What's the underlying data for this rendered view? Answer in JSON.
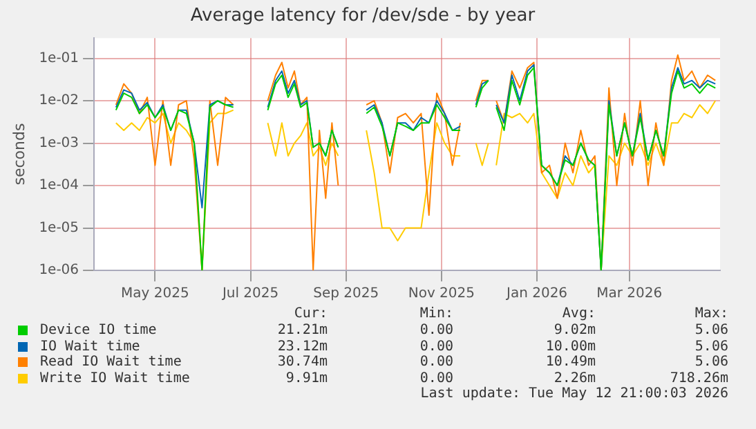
{
  "chart_data": {
    "type": "line",
    "title": "Average latency for /dev/sde - by year",
    "ylabel": "seconds",
    "log": "y",
    "grid": true,
    "marker": "none",
    "legend": "bottom",
    "xlim": [
      "2025-04-07",
      "2026-05-12"
    ],
    "xticks": [
      {
        "value": "2025-05-16",
        "label": "May 2025"
      },
      {
        "value": "2025-07-16",
        "label": "Jul 2025"
      },
      {
        "value": "2025-09-15",
        "label": "Sep 2025"
      },
      {
        "value": "2025-11-15",
        "label": "Nov 2025"
      },
      {
        "value": "2026-01-15",
        "label": "Jan 2026"
      },
      {
        "value": "2026-03-15",
        "label": "Mar 2026"
      }
    ],
    "ylim": [
      1e-06,
      0.3
    ],
    "yticks": [
      {
        "value": 1e-06,
        "label": "1e-06"
      },
      {
        "value": 1e-05,
        "label": "1e-05"
      },
      {
        "value": 0.0001,
        "label": "1e-04"
      },
      {
        "value": 0.001,
        "label": "1e-03"
      },
      {
        "value": 0.01,
        "label": "1e-02"
      },
      {
        "value": 0.1,
        "label": "1e-01"
      }
    ],
    "x": [
      "2025-04-21",
      "2025-04-26",
      "2025-05-01",
      "2025-05-06",
      "2025-05-11",
      "2025-05-16",
      "2025-05-21",
      "2025-05-26",
      "2025-05-31",
      "2025-06-05",
      "2025-06-10",
      "2025-06-15",
      "2025-06-20",
      "2025-06-25",
      "2025-06-30",
      "2025-07-05",
      "2025-07-15",
      "2025-07-27",
      "2025-08-01",
      "2025-08-05",
      "2025-08-09",
      "2025-08-13",
      "2025-08-17",
      "2025-08-21",
      "2025-08-25",
      "2025-08-29",
      "2025-09-02",
      "2025-09-06",
      "2025-09-10",
      "2025-09-20",
      "2025-09-28",
      "2025-10-03",
      "2025-10-08",
      "2025-10-13",
      "2025-10-18",
      "2025-10-23",
      "2025-10-28",
      "2025-11-02",
      "2025-11-07",
      "2025-11-12",
      "2025-11-17",
      "2025-11-22",
      "2025-11-27",
      "2025-12-02",
      "2025-12-07",
      "2025-12-11",
      "2025-12-15",
      "2025-12-17",
      "2025-12-20",
      "2025-12-25",
      "2025-12-30",
      "2026-01-04",
      "2026-01-09",
      "2026-01-13",
      "2026-01-18",
      "2026-01-23",
      "2026-01-28",
      "2026-02-02",
      "2026-02-07",
      "2026-02-12",
      "2026-02-17",
      "2026-02-21",
      "2026-02-25",
      "2026-03-02",
      "2026-03-07",
      "2026-03-12",
      "2026-03-17",
      "2026-03-22",
      "2026-03-27",
      "2026-04-01",
      "2026-04-06",
      "2026-04-11",
      "2026-04-15",
      "2026-04-19",
      "2026-04-24",
      "2026-04-29",
      "2026-05-04",
      "2026-05-09"
    ],
    "series": [
      {
        "name": "Device IO time",
        "color": "#00cc00",
        "values": [
          0.006,
          0.015,
          0.012,
          0.005,
          0.008,
          0.004,
          0.007,
          0.002,
          0.006,
          0.005,
          0.001,
          1e-06,
          0.007,
          0.01,
          0.008,
          0.007,
          null,
          0.006,
          0.025,
          0.04,
          0.012,
          0.025,
          0.007,
          0.009,
          0.0008,
          0.001,
          0.0005,
          0.002,
          0.0008,
          null,
          0.005,
          0.007,
          0.0025,
          0.0005,
          0.003,
          0.0025,
          0.002,
          0.003,
          0.003,
          0.008,
          0.004,
          0.002,
          0.002,
          null,
          0.007,
          0.02,
          0.03,
          null,
          0.007,
          0.002,
          0.03,
          0.008,
          0.04,
          0.06,
          0.0003,
          0.0002,
          0.0001,
          0.0004,
          0.0003,
          0.001,
          0.0004,
          0.0003,
          1e-06,
          0.008,
          0.0005,
          0.003,
          0.0005,
          0.004,
          0.0004,
          0.002,
          0.0005,
          0.015,
          0.05,
          0.02,
          0.025,
          0.015,
          0.025,
          0.02
        ]
      },
      {
        "name": "IO Wait time",
        "color": "#0066b3",
        "values": [
          0.007,
          0.018,
          0.015,
          0.006,
          0.009,
          0.004,
          0.008,
          0.002,
          0.006,
          0.006,
          0.001,
          3e-05,
          0.008,
          0.01,
          0.008,
          0.008,
          null,
          0.007,
          0.03,
          0.05,
          0.015,
          0.03,
          0.008,
          0.01,
          0.0008,
          0.001,
          0.0005,
          0.002,
          0.0008,
          null,
          0.006,
          0.008,
          0.003,
          0.0005,
          0.003,
          0.003,
          0.002,
          0.004,
          0.003,
          0.01,
          0.005,
          0.002,
          0.0025,
          null,
          0.008,
          0.025,
          0.03,
          null,
          0.008,
          0.003,
          0.04,
          0.01,
          0.05,
          0.07,
          0.0003,
          0.0002,
          0.0001,
          0.0005,
          0.0003,
          0.001,
          0.0004,
          0.0003,
          1e-06,
          0.01,
          0.0005,
          0.003,
          0.0005,
          0.005,
          0.0004,
          0.002,
          0.0005,
          0.02,
          0.06,
          0.025,
          0.03,
          0.02,
          0.03,
          0.025
        ]
      },
      {
        "name": "Read IO Wait time",
        "color": "#ff8000",
        "values": [
          0.008,
          0.025,
          0.015,
          0.005,
          0.012,
          0.0003,
          0.01,
          0.0003,
          0.008,
          0.01,
          0.0004,
          1e-06,
          0.01,
          0.0003,
          0.012,
          0.008,
          null,
          0.01,
          0.04,
          0.08,
          0.02,
          0.05,
          0.008,
          0.012,
          1e-06,
          0.002,
          5e-05,
          0.003,
          0.0001,
          null,
          0.008,
          0.01,
          0.003,
          0.0002,
          0.004,
          0.005,
          0.003,
          0.005,
          2e-05,
          0.015,
          0.005,
          0.0003,
          0.003,
          null,
          0.01,
          0.03,
          0.03,
          null,
          0.01,
          0.003,
          0.05,
          0.02,
          0.06,
          0.08,
          0.0002,
          0.0003,
          5e-05,
          0.001,
          0.0002,
          0.002,
          0.0003,
          0.0005,
          1e-06,
          0.02,
          0.0001,
          0.005,
          0.0003,
          0.01,
          0.0001,
          0.003,
          0.0003,
          0.03,
          0.12,
          0.03,
          0.05,
          0.02,
          0.04,
          0.03
        ]
      },
      {
        "name": "Write IO Wait time",
        "color": "#ffcc00",
        "values": [
          0.003,
          0.002,
          0.003,
          0.002,
          0.004,
          0.003,
          0.005,
          0.001,
          0.003,
          0.002,
          0.001,
          1e-06,
          0.003,
          0.005,
          0.005,
          0.006,
          null,
          0.003,
          0.0005,
          0.003,
          0.0005,
          0.001,
          0.0015,
          0.003,
          0.0005,
          0.0008,
          0.0003,
          0.001,
          0.0005,
          null,
          0.002,
          0.0002,
          1e-05,
          1e-05,
          5e-06,
          1e-05,
          1e-05,
          1e-05,
          0.0002,
          0.003,
          0.001,
          0.0005,
          0.0005,
          null,
          0.001,
          0.0003,
          0.001,
          null,
          0.0003,
          0.005,
          0.004,
          0.005,
          0.003,
          0.005,
          0.0002,
          0.0001,
          5e-05,
          0.0002,
          0.0001,
          0.0005,
          0.0002,
          0.0003,
          1e-06,
          0.0005,
          0.0003,
          0.001,
          0.0005,
          0.001,
          0.0003,
          0.001,
          0.0003,
          0.003,
          0.003,
          0.005,
          0.004,
          0.008,
          0.005,
          0.01
        ]
      }
    ],
    "annotations": [
      "Cur:",
      "Min:",
      "Avg:",
      "Max:",
      "21.21m",
      "0.00",
      "9.02m",
      "5.06",
      "23.12m",
      "0.00",
      "10.00m",
      "5.06",
      "30.74m",
      "0.00",
      "10.49m",
      "5.06",
      "9.91m",
      "0.00",
      "2.26m",
      "718.26m",
      "Last update: Tue May 12 21:00:03 2026"
    ]
  }
}
